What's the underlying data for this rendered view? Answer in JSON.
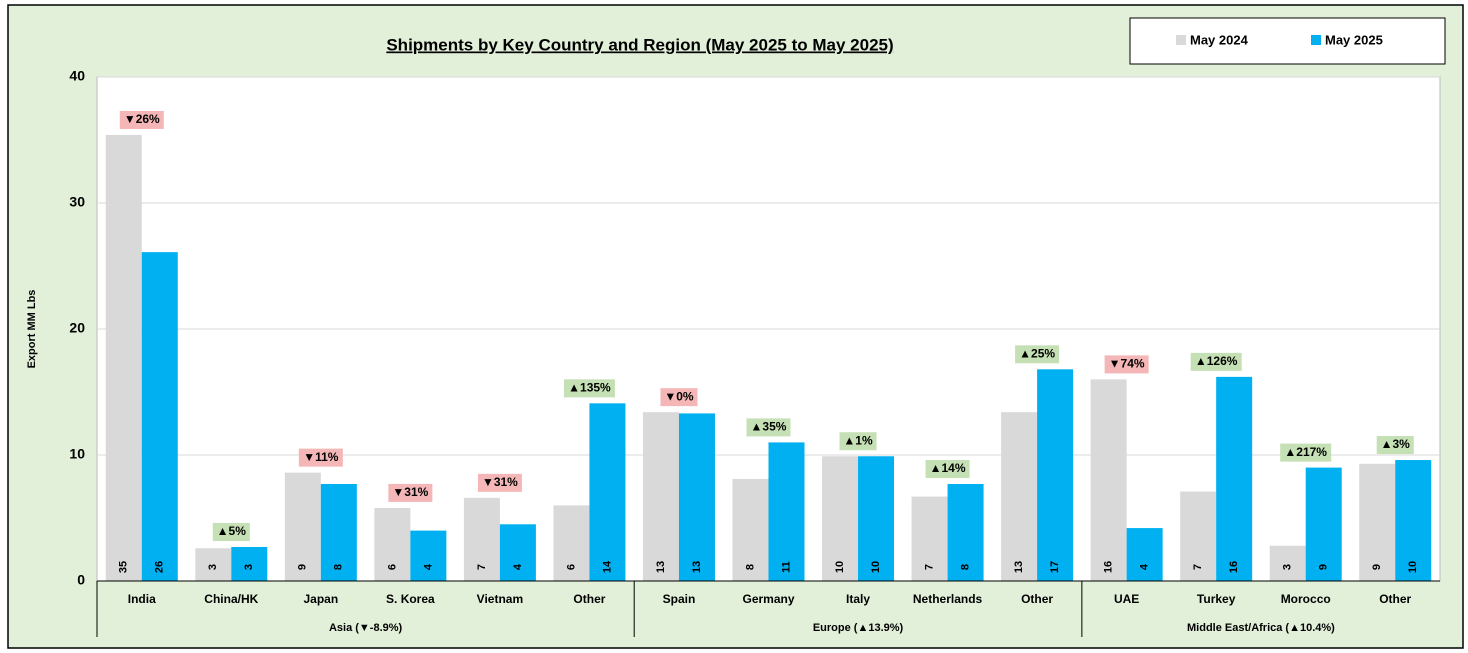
{
  "chart_data": {
    "type": "bar",
    "title": "Shipments by Key Country and Region (May 2025 to May 2025)",
    "y_label": "Export MM Lbs",
    "groups": [
      {
        "label": "Asia (▼-8.9%)",
        "categories": [
          "India",
          "China/HK",
          "Japan",
          "S. Korea",
          "Vietnam",
          "Other"
        ]
      },
      {
        "label": "Europe (▲13.9%)",
        "categories": [
          "Spain",
          "Germany",
          "Italy",
          "Netherlands",
          "Other"
        ]
      },
      {
        "label": "Middle East/Africa (▲10.4%)",
        "categories": [
          "UAE",
          "Turkey",
          "Morocco",
          "Other"
        ]
      }
    ],
    "series": [
      {
        "name": "May 2024",
        "color": "#d9d9d9",
        "values": [
          35.4,
          2.6,
          8.6,
          5.8,
          6.6,
          6.0,
          13.4,
          8.1,
          9.9,
          6.7,
          13.4,
          16.0,
          7.1,
          2.8,
          9.3
        ],
        "value_labels": [
          "35",
          "3",
          "9",
          "6",
          "7",
          "6",
          "13",
          "8",
          "10",
          "7",
          "13",
          "16",
          "7",
          "3",
          "9"
        ]
      },
      {
        "name": "May 2025",
        "color": "#00b0f0",
        "values": [
          26.1,
          2.7,
          7.7,
          4.0,
          4.5,
          14.1,
          13.3,
          11.0,
          9.9,
          7.7,
          16.8,
          4.2,
          16.2,
          9.0,
          9.6
        ],
        "value_labels": [
          "26",
          "3",
          "8",
          "4",
          "4",
          "14",
          "13",
          "11",
          "10",
          "8",
          "17",
          "4",
          "16",
          "9",
          "10"
        ]
      }
    ],
    "annotations": [
      "▼26%",
      "▲5%",
      "▼11%",
      "▼31%",
      "▼31%",
      "▲135%",
      "▼0%",
      "▲35%",
      "▲1%",
      "▲14%",
      "▲25%",
      "▼74%",
      "▲126%",
      "▲217%",
      "▲3%"
    ],
    "annotation_colors": [
      "#f4b6b6",
      "#c5e0b4",
      "#f4b6b6",
      "#f4b6b6",
      "#f4b6b6",
      "#c5e0b4",
      "#f4b6b6",
      "#c5e0b4",
      "#c5e0b4",
      "#c5e0b4",
      "#c5e0b4",
      "#f4b6b6",
      "#c5e0b4",
      "#c5e0b4",
      "#c5e0b4"
    ],
    "ylim": [
      0,
      40
    ],
    "yticks": [
      0,
      10,
      20,
      30,
      40
    ],
    "grid": true,
    "legend": "top-right"
  }
}
